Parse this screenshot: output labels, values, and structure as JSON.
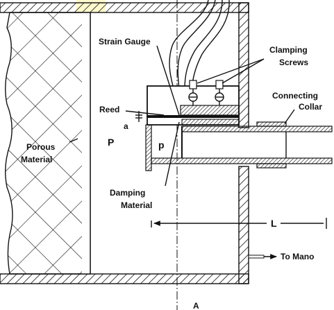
{
  "labels": {
    "strain_gauge": "Strain Gauge",
    "clamping_1": "Clamping",
    "clamping_2": "Screws",
    "connecting_1": "Connecting",
    "connecting_2": "Collar",
    "reed": "Reed",
    "a": "a",
    "P": "P",
    "p": "p",
    "porous_1": "Porous",
    "porous_2": "Material",
    "damping_1": "Damping",
    "damping_2": "Material",
    "L": "L",
    "to_mano": "To Mano",
    "section_A": "A"
  },
  "colors": {
    "ink": "#111111",
    "paper": "#ffffff",
    "highlight": "#fff7c0"
  }
}
